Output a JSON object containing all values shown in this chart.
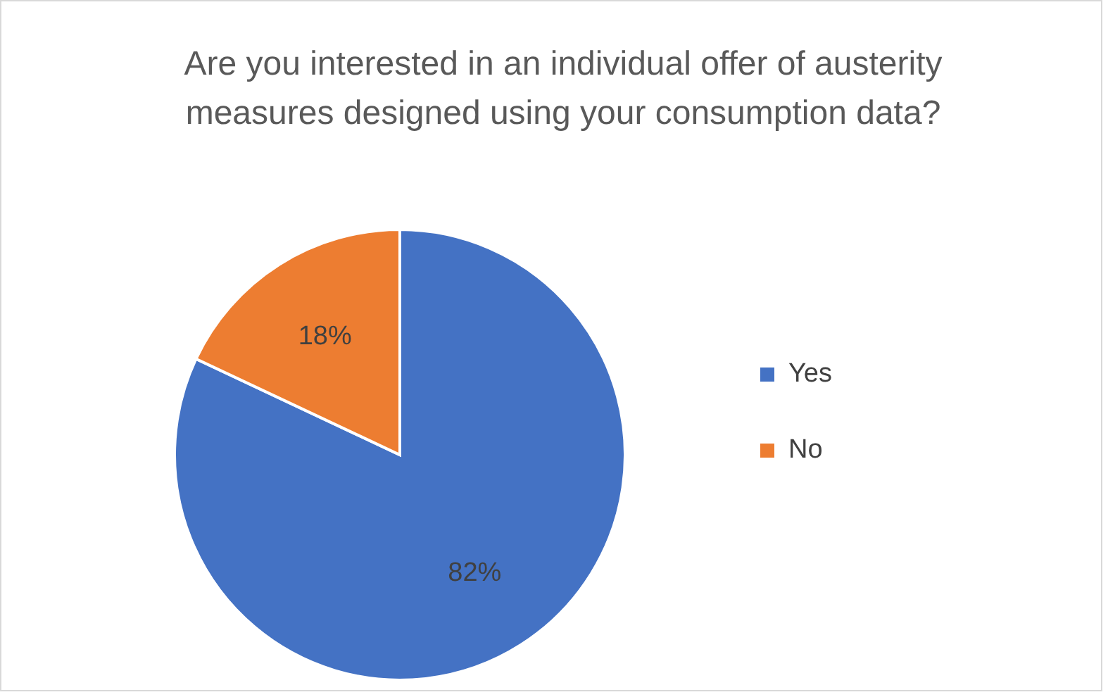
{
  "chart_data": {
    "type": "pie",
    "title": "Are you interested in an individual offer of austerity measures designed using your consumption data?",
    "categories": [
      "Yes",
      "No"
    ],
    "values": [
      82,
      18
    ],
    "colors": [
      "#4472c4",
      "#ed7d31"
    ],
    "value_labels": [
      "82%",
      "18%"
    ],
    "legend": "right"
  }
}
